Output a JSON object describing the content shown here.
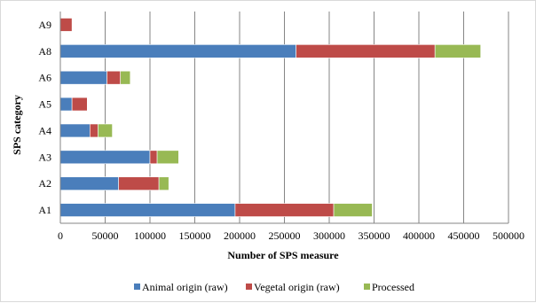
{
  "chart_data": {
    "type": "bar",
    "orientation": "horizontal",
    "stacked": true,
    "categories": [
      "A1",
      "A2",
      "A3",
      "A4",
      "A5",
      "A6",
      "A8",
      "A9"
    ],
    "series": [
      {
        "name": "Animal origin (raw)",
        "color": "#4a7ebb",
        "values": [
          195000,
          65000,
          100000,
          33000,
          13000,
          52000,
          263000,
          0
        ]
      },
      {
        "name": "Vegetal origin (raw)",
        "color": "#be4b48",
        "values": [
          110000,
          45000,
          8000,
          9000,
          17000,
          15000,
          155000,
          13000
        ]
      },
      {
        "name": "Processed",
        "color": "#98b954",
        "values": [
          43000,
          11000,
          24000,
          16000,
          0,
          11000,
          51000,
          0
        ]
      }
    ],
    "xlabel": "Number of SPS measure",
    "ylabel": "SPS category",
    "xlim": [
      0,
      500000
    ],
    "xticks": [
      "0",
      "50000",
      "100000",
      "150000",
      "200000",
      "250000",
      "300000",
      "350000",
      "400000",
      "450000",
      "500000"
    ],
    "grid": true,
    "legend_position": "bottom"
  }
}
